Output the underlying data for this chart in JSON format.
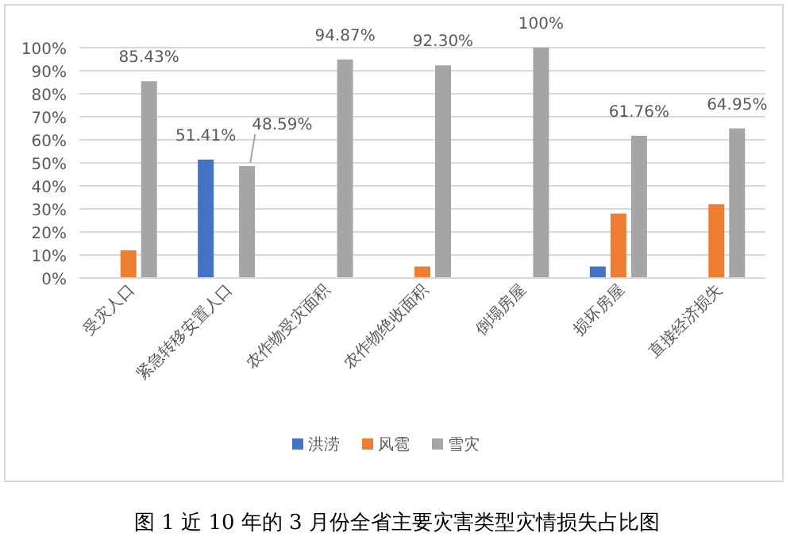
{
  "chart_data": {
    "type": "bar",
    "title": "图 1 近 10 年的 3 月份全省主要灾害类型灾情损失占比图",
    "categories": [
      "受灾人口",
      "紧急转移安置人口",
      "农作物受灾面积",
      "农作物绝收面积",
      "倒塌房屋",
      "损坏房屋",
      "直接经济损失"
    ],
    "series": [
      {
        "name": "洪涝",
        "color": "#4472c4",
        "values": [
          null,
          51.41,
          null,
          null,
          null,
          5,
          null
        ],
        "value_labels": [
          null,
          "51.41%",
          null,
          null,
          null,
          null,
          null
        ]
      },
      {
        "name": "风雹",
        "color": "#ed7d31",
        "values": [
          12,
          null,
          null,
          5,
          null,
          28,
          32
        ]
      },
      {
        "name": "雪灾",
        "color": "#a5a5a5",
        "values": [
          85.43,
          48.59,
          94.87,
          92.3,
          100,
          61.76,
          64.95
        ],
        "value_labels": [
          "85.43%",
          "48.59%",
          "94.87%",
          "92.30%",
          "100%",
          "61.76%",
          "64.95%"
        ]
      }
    ],
    "ylim": [
      0,
      100
    ],
    "yticks": [
      {
        "value": 0,
        "label": "0%"
      },
      {
        "value": 10,
        "label": "10%"
      },
      {
        "value": 20,
        "label": "20%"
      },
      {
        "value": 30,
        "label": "30%"
      },
      {
        "value": 40,
        "label": "40%"
      },
      {
        "value": 50,
        "label": "50%"
      },
      {
        "value": 60,
        "label": "60%"
      },
      {
        "value": 70,
        "label": "70%"
      },
      {
        "value": 80,
        "label": "80%"
      },
      {
        "value": 90,
        "label": "90%"
      },
      {
        "value": 100,
        "label": "100%"
      }
    ],
    "grid": "y",
    "legend": "bottom"
  }
}
